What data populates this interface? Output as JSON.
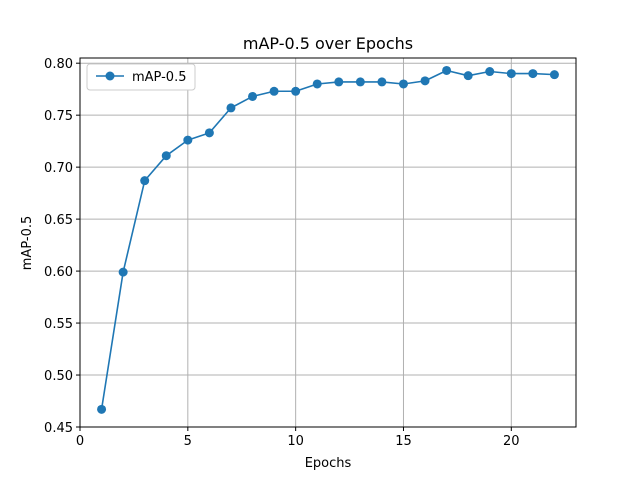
{
  "chart_data": {
    "type": "line",
    "title": "mAP-0.5 over Epochs",
    "xlabel": "Epochs",
    "ylabel": "mAP-0.5",
    "xlim": [
      0,
      23
    ],
    "ylim": [
      0.45,
      0.805
    ],
    "xticks": [
      0,
      5,
      10,
      15,
      20
    ],
    "yticks": [
      0.45,
      0.5,
      0.55,
      0.6,
      0.65,
      0.7,
      0.75,
      0.8
    ],
    "grid": true,
    "legend_position": "top-left",
    "series": [
      {
        "name": "mAP-0.5",
        "color": "#1f77b4",
        "marker": "circle",
        "x": [
          1,
          2,
          3,
          4,
          5,
          6,
          7,
          8,
          9,
          10,
          11,
          12,
          13,
          14,
          15,
          16,
          17,
          18,
          19,
          20,
          21,
          22
        ],
        "y": [
          0.467,
          0.599,
          0.687,
          0.711,
          0.726,
          0.733,
          0.757,
          0.768,
          0.773,
          0.773,
          0.78,
          0.782,
          0.782,
          0.782,
          0.78,
          0.783,
          0.793,
          0.788,
          0.792,
          0.79,
          0.79,
          0.789
        ]
      }
    ]
  }
}
